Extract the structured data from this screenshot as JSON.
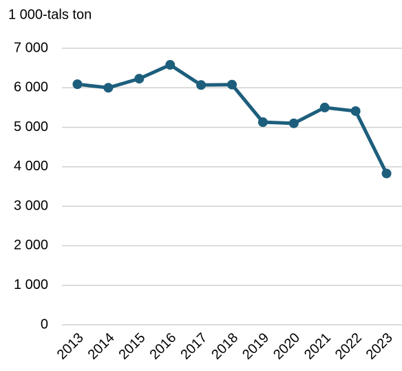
{
  "chart_data": {
    "type": "line",
    "y_axis_label": "1 000-tals ton",
    "categories": [
      "2013",
      "2014",
      "2015",
      "2016",
      "2017",
      "2018",
      "2019",
      "2020",
      "2021",
      "2022",
      "2023"
    ],
    "values": [
      6090,
      6000,
      6230,
      6580,
      6070,
      6080,
      5130,
      5100,
      5500,
      5410,
      3830
    ],
    "color": "#1d5e7d",
    "ylim": [
      0,
      7000
    ],
    "yticks": [
      0,
      {
        "value": 1000,
        "label": "1 000"
      },
      {
        "value": 2000,
        "label": "2 000"
      },
      {
        "value": 3000,
        "label": "3 000"
      },
      {
        "value": 4000,
        "label": "4 000"
      },
      {
        "value": 5000,
        "label": "5 000"
      },
      {
        "value": 6000,
        "label": "6 000"
      },
      {
        "value": 7000,
        "label": "7 000"
      }
    ],
    "grid": true
  }
}
